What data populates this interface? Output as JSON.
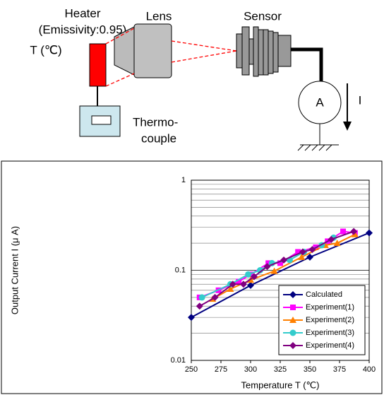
{
  "diagram": {
    "heater_label": "Heater",
    "emissivity_label": "(Emissivity:0.95)",
    "temperature_label": "T (℃)",
    "lens_label": "Lens",
    "sensor_label": "Sensor",
    "thermocouple_label_1": "Thermo-",
    "thermocouple_label_2": "couple",
    "ammeter_label": "A",
    "current_label": "I"
  },
  "chart_data": {
    "type": "line",
    "x_label": "Temperature T (℃)",
    "y_label": "Output Current I (μ A)",
    "xlim": [
      250,
      400
    ],
    "xticks": [
      250,
      275,
      300,
      325,
      350,
      375,
      400
    ],
    "ylim": [
      0.01,
      1
    ],
    "yticks": [
      0.01,
      0.1,
      1
    ],
    "log_y": true,
    "grid": true,
    "legend": "lower right",
    "series": [
      {
        "name": "Calculated",
        "color": "#000080",
        "marker": "diamond",
        "x": [
          250,
          300,
          350,
          400
        ],
        "values": [
          0.03,
          0.068,
          0.14,
          0.26
        ]
      },
      {
        "name": "Experiment(1)",
        "color": "#ff00ff",
        "marker": "square",
        "x": [
          257,
          273,
          290,
          300,
          315,
          325,
          340,
          355,
          365,
          378,
          388
        ],
        "values": [
          0.05,
          0.06,
          0.075,
          0.09,
          0.12,
          0.12,
          0.16,
          0.18,
          0.21,
          0.27,
          0.26
        ]
      },
      {
        "name": "Experiment(2)",
        "color": "#ff8000",
        "marker": "triangle",
        "x": [
          268,
          283,
          300,
          320,
          343,
          363,
          373,
          388
        ],
        "values": [
          0.048,
          0.062,
          0.078,
          0.098,
          0.14,
          0.19,
          0.2,
          0.25
        ]
      },
      {
        "name": "Experiment(3)",
        "color": "#33cccc",
        "marker": "circle",
        "x": [
          259,
          283,
          298,
          308,
          318,
          333,
          345,
          360,
          370
        ],
        "values": [
          0.05,
          0.07,
          0.09,
          0.1,
          0.12,
          0.13,
          0.16,
          0.19,
          0.23
        ]
      },
      {
        "name": "Experiment(4)",
        "color": "#800080",
        "marker": "diamond",
        "x": [
          257,
          270,
          285,
          294,
          303,
          314,
          328,
          344,
          352,
          368,
          387
        ],
        "values": [
          0.04,
          0.05,
          0.07,
          0.07,
          0.085,
          0.11,
          0.13,
          0.16,
          0.17,
          0.22,
          0.27
        ]
      }
    ]
  }
}
